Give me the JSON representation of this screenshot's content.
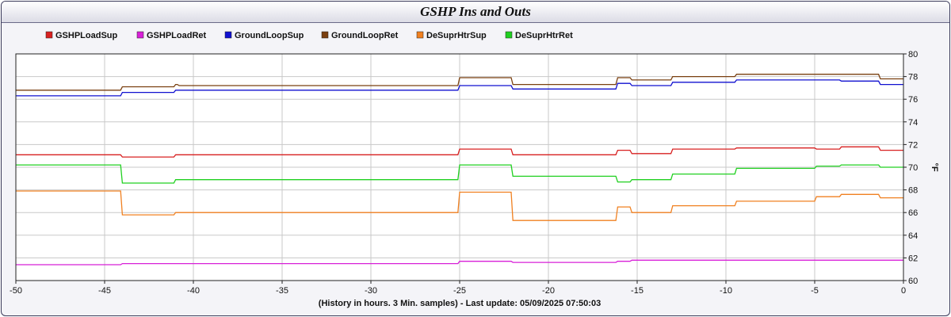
{
  "window": {
    "title": "GSHP Ins and Outs"
  },
  "chart_data": {
    "type": "line",
    "title": "GSHP Ins and Outs",
    "xlabel": "(History in hours. 3 Min. samples) - Last update: 05/09/2025 07:50:03",
    "ylabel": "°F",
    "xlim": [
      -50,
      0
    ],
    "ylim": [
      60,
      80
    ],
    "xticks": [
      -50,
      -45,
      -40,
      -35,
      -30,
      -25,
      -20,
      -15,
      -10,
      -5,
      0
    ],
    "yticks": [
      60,
      62,
      64,
      66,
      68,
      70,
      72,
      74,
      76,
      78,
      80
    ],
    "grid": true,
    "legend_position": "top",
    "series": [
      {
        "name": "GSHPLoadSup",
        "color": "#d82020",
        "points": [
          [
            -50,
            71.1
          ],
          [
            -44.1,
            71.1
          ],
          [
            -44,
            70.9
          ],
          [
            -41.1,
            70.9
          ],
          [
            -41,
            71.1
          ],
          [
            -25.1,
            71.1
          ],
          [
            -25,
            71.6
          ],
          [
            -22.1,
            71.6
          ],
          [
            -22,
            71.1
          ],
          [
            -16.2,
            71.1
          ],
          [
            -16.1,
            71.5
          ],
          [
            -15.4,
            71.5
          ],
          [
            -15.3,
            71.2
          ],
          [
            -13.1,
            71.2
          ],
          [
            -13,
            71.6
          ],
          [
            -9.5,
            71.6
          ],
          [
            -9.4,
            71.7
          ],
          [
            -5,
            71.7
          ],
          [
            -4.9,
            71.6
          ],
          [
            -3.6,
            71.6
          ],
          [
            -3.5,
            71.8
          ],
          [
            -1.4,
            71.8
          ],
          [
            -1.3,
            71.5
          ],
          [
            0,
            71.5
          ]
        ]
      },
      {
        "name": "GSHPLoadRet",
        "color": "#d820d8",
        "points": [
          [
            -50,
            61.4
          ],
          [
            -44.1,
            61.4
          ],
          [
            -44,
            61.5
          ],
          [
            -25.1,
            61.5
          ],
          [
            -25,
            61.7
          ],
          [
            -22.1,
            61.7
          ],
          [
            -22,
            61.6
          ],
          [
            -16.2,
            61.6
          ],
          [
            -16.1,
            61.7
          ],
          [
            -15.4,
            61.7
          ],
          [
            -15.3,
            61.8
          ],
          [
            0,
            61.8
          ]
        ]
      },
      {
        "name": "GroundLoopSup",
        "color": "#1010d0",
        "points": [
          [
            -50,
            76.3
          ],
          [
            -44.1,
            76.3
          ],
          [
            -44,
            76.6
          ],
          [
            -41.1,
            76.6
          ],
          [
            -41,
            76.8
          ],
          [
            -25.1,
            76.8
          ],
          [
            -25,
            77.2
          ],
          [
            -22.1,
            77.2
          ],
          [
            -22,
            76.9
          ],
          [
            -16.2,
            76.9
          ],
          [
            -16.1,
            77.4
          ],
          [
            -15.4,
            77.4
          ],
          [
            -15.3,
            77.2
          ],
          [
            -13.1,
            77.2
          ],
          [
            -13,
            77.5
          ],
          [
            -9.5,
            77.5
          ],
          [
            -9.4,
            77.7
          ],
          [
            -3.6,
            77.7
          ],
          [
            -3.5,
            77.6
          ],
          [
            -1.4,
            77.6
          ],
          [
            -1.3,
            77.3
          ],
          [
            0,
            77.3
          ]
        ]
      },
      {
        "name": "GroundLoopRet",
        "color": "#7a4010",
        "points": [
          [
            -50,
            76.8
          ],
          [
            -44.1,
            76.8
          ],
          [
            -44,
            77.1
          ],
          [
            -41.1,
            77.1
          ],
          [
            -41,
            77.3
          ],
          [
            -40.9,
            77.3
          ],
          [
            -40.8,
            77.2
          ],
          [
            -25.1,
            77.2
          ],
          [
            -25,
            77.9
          ],
          [
            -22.1,
            77.9
          ],
          [
            -22,
            77.3
          ],
          [
            -16.2,
            77.3
          ],
          [
            -16.1,
            77.9
          ],
          [
            -15.4,
            77.9
          ],
          [
            -15.3,
            77.7
          ],
          [
            -13.1,
            77.7
          ],
          [
            -13,
            78.0
          ],
          [
            -9.5,
            78.0
          ],
          [
            -9.4,
            78.2
          ],
          [
            -1.4,
            78.2
          ],
          [
            -1.3,
            77.8
          ],
          [
            0,
            77.8
          ]
        ]
      },
      {
        "name": "DeSuprHtrSup",
        "color": "#f08020",
        "points": [
          [
            -50,
            67.9
          ],
          [
            -44.1,
            67.9
          ],
          [
            -44,
            65.8
          ],
          [
            -41.1,
            65.8
          ],
          [
            -41,
            66.0
          ],
          [
            -25.1,
            66.0
          ],
          [
            -25,
            67.8
          ],
          [
            -22.1,
            67.8
          ],
          [
            -22,
            65.3
          ],
          [
            -16.2,
            65.3
          ],
          [
            -16.1,
            66.5
          ],
          [
            -15.4,
            66.5
          ],
          [
            -15.3,
            66.0
          ],
          [
            -13.1,
            66.0
          ],
          [
            -13,
            66.6
          ],
          [
            -9.5,
            66.6
          ],
          [
            -9.4,
            67.0
          ],
          [
            -5,
            67.0
          ],
          [
            -4.9,
            67.4
          ],
          [
            -3.6,
            67.4
          ],
          [
            -3.5,
            67.6
          ],
          [
            -1.4,
            67.6
          ],
          [
            -1.3,
            67.3
          ],
          [
            0,
            67.3
          ]
        ]
      },
      {
        "name": "DeSuprHtrRet",
        "color": "#20d020",
        "points": [
          [
            -50,
            70.2
          ],
          [
            -44.1,
            70.2
          ],
          [
            -44,
            68.6
          ],
          [
            -41.1,
            68.6
          ],
          [
            -41,
            68.9
          ],
          [
            -25.1,
            68.9
          ],
          [
            -25,
            70.2
          ],
          [
            -22.1,
            70.2
          ],
          [
            -22,
            69.2
          ],
          [
            -16.2,
            69.2
          ],
          [
            -16.1,
            68.7
          ],
          [
            -15.4,
            68.7
          ],
          [
            -15.3,
            68.9
          ],
          [
            -13.1,
            68.9
          ],
          [
            -13,
            69.4
          ],
          [
            -9.5,
            69.4
          ],
          [
            -9.4,
            69.9
          ],
          [
            -5,
            69.9
          ],
          [
            -4.9,
            70.1
          ],
          [
            -3.6,
            70.1
          ],
          [
            -3.5,
            70.2
          ],
          [
            -1.4,
            70.2
          ],
          [
            -1.3,
            70.0
          ],
          [
            0,
            70.0
          ]
        ]
      }
    ]
  }
}
